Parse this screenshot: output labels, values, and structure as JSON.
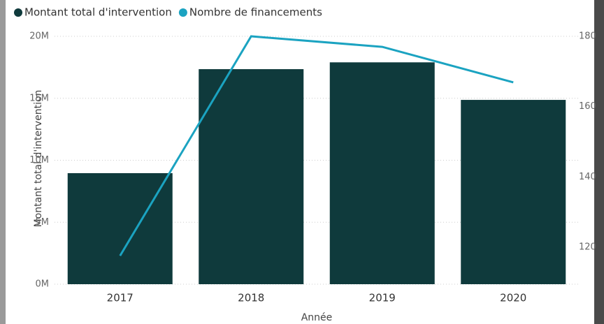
{
  "chart_data": {
    "type": "bar-line",
    "x_label": "Année",
    "y_label": "Montant total d'intervention",
    "categories": [
      "2017",
      "2018",
      "2019",
      "2020"
    ],
    "series": [
      {
        "name": "Montant total d'intervention",
        "color": "#0f3a3c",
        "values": [
          8960000,
          17350000,
          17900000,
          14870000
        ]
      },
      {
        "name": "Nombre de financements",
        "color": "#1ba3c1",
        "axis": "y2",
        "values": [
          117.6,
          180,
          177,
          166.9
        ]
      }
    ],
    "ylim": [
      0,
      20000000
    ],
    "yticks": [
      {
        "value": 0,
        "label": "0M"
      },
      {
        "value": 5000000,
        "label": "5M"
      },
      {
        "value": 10000000,
        "label": "10M"
      },
      {
        "value": 15000000,
        "label": "15M"
      },
      {
        "value": 20000000,
        "label": "20M"
      }
    ],
    "y2lim": [
      109.5,
      180
    ],
    "y2ticks": [
      120,
      140,
      160,
      180
    ],
    "grid": true
  }
}
